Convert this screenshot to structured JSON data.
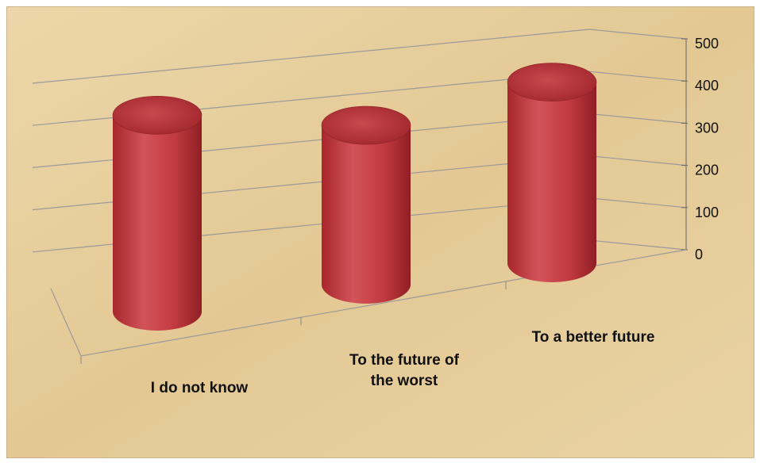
{
  "chart_data": {
    "type": "bar",
    "style": "3d-cylinder",
    "categories": [
      [
        "I do not know"
      ],
      [
        "To the future of",
        "the worst"
      ],
      [
        "To a better future"
      ]
    ],
    "values": [
      450,
      365,
      415
    ],
    "title": "",
    "xlabel": "",
    "ylabel": "",
    "yticks": [
      0,
      100,
      200,
      300,
      400,
      500
    ],
    "ylim": [
      0,
      500
    ],
    "grid": true,
    "legend": "none",
    "colors": {
      "cylinder": "#c0393f",
      "background": "#e7cf9f",
      "grid": "#9a9a9a"
    }
  }
}
